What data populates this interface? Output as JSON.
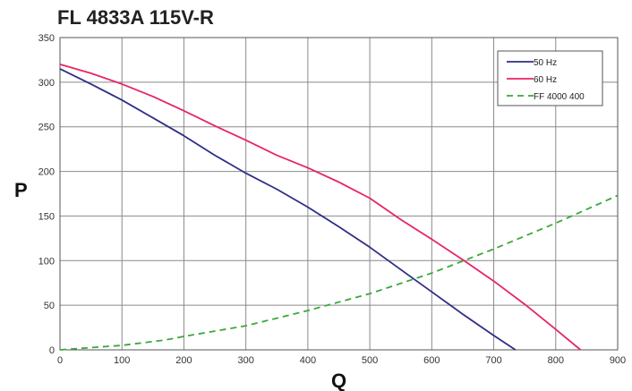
{
  "chart_data": {
    "type": "line",
    "title": "FL 4833A 115V-R",
    "xlabel": "Q",
    "ylabel": "P",
    "xlim": [
      0,
      900
    ],
    "ylim": [
      0,
      350
    ],
    "xticks": [
      0,
      100,
      200,
      300,
      400,
      500,
      600,
      700,
      800,
      900
    ],
    "yticks": [
      0,
      50,
      100,
      150,
      200,
      250,
      300,
      350
    ],
    "grid": true,
    "legend_position": "top-right",
    "series": [
      {
        "name": "50 Hz",
        "color": "#2e2e86",
        "dash": "solid",
        "x": [
          0,
          50,
          100,
          150,
          200,
          250,
          300,
          350,
          400,
          450,
          500,
          550,
          600,
          650,
          700,
          735
        ],
        "y": [
          315,
          298,
          280,
          260,
          240,
          218,
          198,
          180,
          160,
          138,
          115,
          90,
          65,
          40,
          16,
          0
        ]
      },
      {
        "name": "60 Hz",
        "color": "#e8236b",
        "dash": "solid",
        "x": [
          0,
          50,
          100,
          150,
          200,
          250,
          300,
          350,
          400,
          450,
          500,
          550,
          600,
          650,
          700,
          750,
          800,
          840
        ],
        "y": [
          320,
          310,
          298,
          284,
          268,
          251,
          235,
          218,
          204,
          188,
          170,
          146,
          124,
          101,
          77,
          51,
          23,
          0
        ]
      },
      {
        "name": "FF 4000 400",
        "color": "#3aa83a",
        "dash": "dashed",
        "x": [
          0,
          100,
          170,
          200,
          300,
          400,
          500,
          600,
          700,
          800,
          900
        ],
        "y": [
          0,
          5,
          11,
          15,
          27,
          44,
          63,
          86,
          113,
          142,
          173
        ]
      }
    ]
  }
}
